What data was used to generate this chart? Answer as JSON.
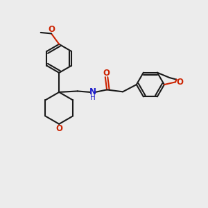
{
  "bg_color": "#ececec",
  "bond_color": "#1a1a1a",
  "o_color": "#cc2200",
  "n_color": "#1a1acc",
  "line_width": 1.5,
  "figsize": [
    3.0,
    3.0
  ],
  "dpi": 100,
  "xlim": [
    0,
    10
  ],
  "ylim": [
    0,
    10
  ]
}
